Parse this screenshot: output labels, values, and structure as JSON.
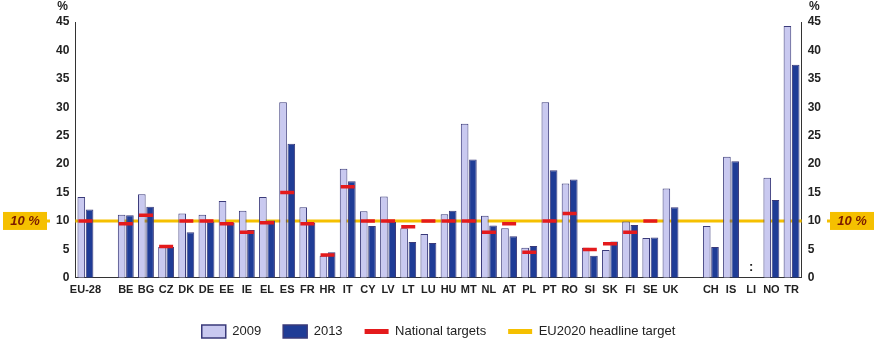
{
  "chart_data": {
    "type": "bar",
    "y_label": "%",
    "categories": [
      "EU-28",
      null,
      "BE",
      "BG",
      "CZ",
      "DK",
      "DE",
      "EE",
      "IE",
      "EL",
      "ES",
      "FR",
      "HR",
      "IT",
      "CY",
      "LV",
      "LT",
      "LU",
      "HU",
      "MT",
      "NL",
      "AT",
      "PL",
      "PT",
      "RO",
      "SI",
      "SK",
      "FI",
      "SE",
      "UK",
      null,
      "CH",
      "IS",
      "LI",
      "NO",
      "TR"
    ],
    "series": [
      {
        "name": "2009",
        "color": "#c9c9f0",
        "values": [
          14.2,
          null,
          11.1,
          14.7,
          5.4,
          11.3,
          11.1,
          13.5,
          11.8,
          14.2,
          30.9,
          12.4,
          3.9,
          19.2,
          11.7,
          14.3,
          8.7,
          7.7,
          11.2,
          27.1,
          10.9,
          8.7,
          5.3,
          30.9,
          16.6,
          5.3,
          4.9,
          9.9,
          7.0,
          15.7,
          null,
          9.1,
          21.3,
          null,
          17.6,
          44.3
        ]
      },
      {
        "name": "2013",
        "color": "#1f3c96",
        "values": [
          12.0,
          null,
          11.0,
          12.5,
          5.4,
          8.0,
          9.9,
          9.7,
          8.4,
          10.1,
          23.6,
          9.7,
          4.5,
          17.0,
          9.1,
          9.8,
          6.3,
          6.1,
          11.8,
          20.8,
          9.2,
          7.3,
          5.6,
          18.9,
          17.3,
          3.9,
          6.4,
          9.3,
          7.1,
          12.4,
          null,
          5.4,
          20.5,
          null,
          13.7,
          37.5
        ]
      },
      {
        "name": "National targets",
        "type": "line",
        "marker": "dash",
        "color": "#e41a1c",
        "values": [
          10,
          null,
          9.5,
          11,
          5.5,
          10,
          10,
          9.5,
          8,
          9.7,
          15,
          9.5,
          4,
          16,
          10,
          10,
          9,
          10,
          10,
          10,
          8,
          9.5,
          4.5,
          10,
          11.3,
          5,
          6,
          8,
          10,
          null,
          null,
          null,
          null,
          null,
          null,
          null
        ]
      }
    ],
    "reference_line": {
      "name": "EU2020 headline target",
      "value": 10,
      "label": "10 %",
      "color": "#f5c000"
    },
    "annotations": [
      {
        "text": ":",
        "category": "LI"
      }
    ],
    "ylim": [
      0,
      45
    ],
    "yticks": [
      0,
      5,
      10,
      15,
      20,
      25,
      30,
      35,
      40,
      45
    ],
    "y2lim": [
      0,
      45
    ],
    "y2ticks": [
      0,
      5,
      10,
      15,
      20,
      25,
      30,
      35,
      40,
      45
    ],
    "grid": false,
    "legend": "bottom"
  }
}
